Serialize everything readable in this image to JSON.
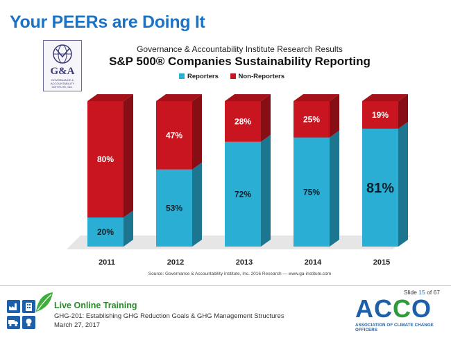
{
  "slide": {
    "title": "Your PEERs are Doing It",
    "slide_label": "Slide",
    "slide_number": "15",
    "slide_of": "of 67"
  },
  "logo": {
    "letters": "G&A",
    "small_text": "GOVERNANCE & ACCOUNTABILITY INSTITUTE, INC."
  },
  "chart_data": {
    "type": "bar",
    "stacked": true,
    "subtitle": "Governance & Accountability Institute Research Results",
    "title": "S&P 500® Companies Sustainability Reporting",
    "categories": [
      "2011",
      "2012",
      "2013",
      "2014",
      "2015"
    ],
    "series": [
      {
        "name": "Reporters",
        "values": [
          20,
          53,
          72,
          75,
          81
        ],
        "labels": [
          "20%",
          "53%",
          "72%",
          "75%",
          "81%"
        ],
        "color": "#2aaed3"
      },
      {
        "name": "Non-Reporters",
        "values": [
          80,
          47,
          28,
          25,
          19
        ],
        "labels": [
          "80%",
          "47%",
          "28%",
          "25%",
          "19%"
        ],
        "color": "#c8151f"
      }
    ],
    "ylim": [
      0,
      100
    ],
    "legend_position": "top",
    "grid": false,
    "source": "Source: Governance & Accountability Institute, Inc. 2016 Research — www.ga-institute.com"
  },
  "footer": {
    "heading": "Live Online Training",
    "course": "GHG-201: Establishing GHG Reduction Goals & GHG Management Structures",
    "date": "March 27, 2017",
    "org_letters": [
      "A",
      "C",
      "C",
      "O"
    ],
    "org_colors": [
      "#1d5fa8",
      "#1d5fa8",
      "#2f9a3a",
      "#1d5fa8"
    ],
    "org_tagline": "ASSOCIATION OF CLIMATE CHANGE OFFICERS"
  }
}
